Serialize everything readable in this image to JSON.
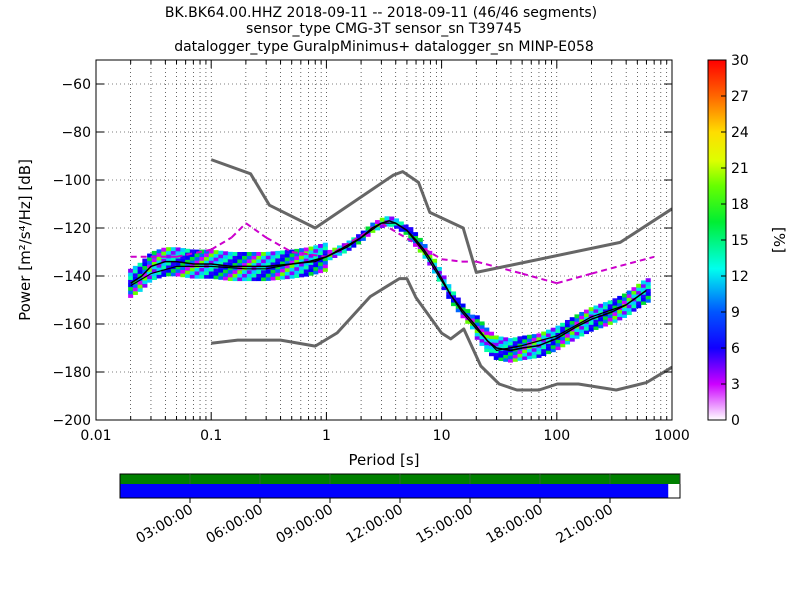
{
  "header": {
    "title_line1": "BK.BK64.00.HHZ   2018-09-11 -- 2018-09-11  (46/46 segments)",
    "title_line2": "sensor_type CMG-3T sensor_sn T39745",
    "title_line3": "datalogger_type GuralpMinimus+ datalogger_sn MINP-E058"
  },
  "chart_data": {
    "type": "heatmap",
    "x_scale": "log",
    "xlabel": "Period [s]",
    "ylabel": "Power [m²/s⁴/Hz] [dB]",
    "xlim": [
      0.01,
      1000
    ],
    "ylim": [
      -200,
      -50
    ],
    "x_ticks": [
      0.01,
      0.1,
      1,
      10,
      100,
      1000
    ],
    "x_tick_labels": [
      "0.01",
      "0.1",
      "1",
      "10",
      "100",
      "1000"
    ],
    "y_ticks": [
      -200,
      -180,
      -160,
      -140,
      -120,
      -100,
      -80,
      -60
    ],
    "y_tick_labels": [
      "−200",
      "−180",
      "−160",
      "−140",
      "−120",
      "−100",
      "−80",
      "−60"
    ],
    "grid": "dotted",
    "colorbar": {
      "label": "[%]",
      "range": [
        0,
        30
      ],
      "ticks": [
        0,
        3,
        6,
        9,
        12,
        15,
        18,
        21,
        24,
        27,
        30
      ],
      "tick_labels": [
        "0",
        "3",
        "6",
        "9",
        "12",
        "15",
        "18",
        "21",
        "24",
        "27",
        "30"
      ]
    },
    "high_noise_model": {
      "color": "#666666",
      "periods": [
        0.1,
        0.22,
        0.32,
        0.8,
        3.8,
        4.6,
        6.3,
        7.9,
        15.4,
        20,
        354.8,
        1000
      ],
      "db": [
        -91.5,
        -97.4,
        -110.5,
        -120,
        -98,
        -96.5,
        -101,
        -113.5,
        -120,
        -138.5,
        -126,
        -112
      ]
    },
    "low_noise_model": {
      "color": "#666666",
      "periods": [
        0.1,
        0.17,
        0.4,
        0.8,
        1.24,
        2.4,
        4.3,
        5,
        6,
        10,
        12,
        15.6,
        21.9,
        31.6,
        45,
        70,
        101,
        154,
        328,
        600,
        1000
      ],
      "db": [
        -168,
        -166.7,
        -166.7,
        -169.2,
        -163.7,
        -148.6,
        -141.1,
        -141.1,
        -149,
        -163.8,
        -166.2,
        -162.1,
        -177.5,
        -185,
        -187.5,
        -187.5,
        -185,
        -185,
        -187.5,
        -184.4,
        -178
      ]
    },
    "median_curve": {
      "periods": [
        0.02,
        0.025,
        0.03,
        0.04,
        0.05,
        0.07,
        0.1,
        0.15,
        0.2,
        0.3,
        0.5,
        0.7,
        1,
        1.5,
        2,
        2.5,
        3,
        3.5,
        4,
        5,
        6,
        7,
        8,
        10,
        12,
        15,
        20,
        25,
        30,
        40,
        50,
        70,
        100,
        150,
        200,
        300,
        400,
        600
      ],
      "db": [
        -143,
        -140,
        -136,
        -134,
        -134,
        -135,
        -135,
        -136,
        -136,
        -136,
        -135,
        -134,
        -132,
        -128,
        -124,
        -120,
        -118,
        -117,
        -118,
        -121,
        -125,
        -129,
        -133,
        -141,
        -148,
        -154,
        -161,
        -167,
        -170,
        -171,
        -170,
        -169,
        -166,
        -161,
        -158,
        -155,
        -152,
        -146
      ]
    },
    "mode_curve": {
      "periods": [
        0.02,
        0.03,
        0.05,
        0.1,
        0.2,
        0.3,
        0.5,
        0.8,
        1,
        2,
        3,
        4,
        5,
        7,
        10,
        15,
        20,
        30,
        50,
        100,
        200,
        400
      ],
      "db": [
        -144,
        -139,
        -136,
        -136,
        -137,
        -137,
        -135,
        -134,
        -132,
        -124,
        -118,
        -118,
        -121,
        -130,
        -142,
        -155,
        -162,
        -171,
        -169,
        -165,
        -157,
        -152
      ]
    },
    "outlier_trace": {
      "color": "#cc00cc",
      "periods": [
        0.02,
        0.05,
        0.1,
        0.15,
        0.2,
        0.3,
        0.5,
        1,
        3,
        10,
        15,
        20,
        50,
        100,
        200,
        700
      ],
      "db": [
        -132,
        -132,
        -129,
        -124,
        -118,
        -124,
        -130,
        -132,
        -118,
        -133,
        -134,
        -134,
        -139,
        -143,
        -139,
        -132
      ]
    }
  },
  "timeline": {
    "covered_color": "#0000ff",
    "segment_color": "#008000",
    "coverage_fraction": 0.979,
    "tick_labels": [
      "03:00:00",
      "06:00:00",
      "09:00:00",
      "12:00:00",
      "15:00:00",
      "18:00:00",
      "21:00:00"
    ]
  }
}
